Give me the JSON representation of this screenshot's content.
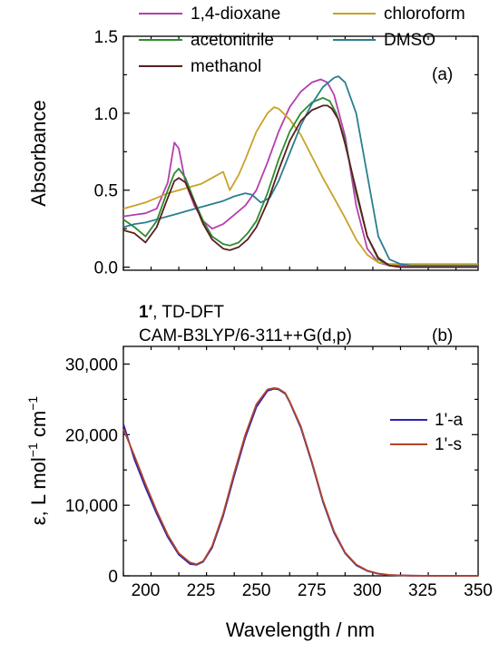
{
  "chart_data": [
    {
      "type": "line",
      "panel_label": "(a)",
      "ylabel": "Absorbance",
      "xlim": [
        190,
        350
      ],
      "ylim": [
        -0.02,
        1.5
      ],
      "yticks": [
        0.0,
        0.5,
        1.0,
        1.5
      ],
      "ytick_labels": [
        "0.0",
        "0.5",
        "1.0",
        "1.5"
      ],
      "xticks": [
        200,
        225,
        250,
        275,
        300,
        325,
        350
      ],
      "legend_position": "top",
      "series": [
        {
          "name": "1,4-dioxane",
          "color": "#b43fae",
          "x": [
            190,
            195,
            200,
            205,
            210,
            213,
            215,
            218,
            222,
            226,
            230,
            235,
            240,
            245,
            250,
            255,
            260,
            265,
            270,
            275,
            279,
            282,
            285,
            290,
            295,
            300,
            305,
            310,
            315,
            320,
            350
          ],
          "y": [
            0.33,
            0.34,
            0.35,
            0.38,
            0.55,
            0.81,
            0.77,
            0.55,
            0.4,
            0.3,
            0.25,
            0.28,
            0.34,
            0.4,
            0.5,
            0.68,
            0.88,
            1.04,
            1.14,
            1.2,
            1.22,
            1.2,
            1.12,
            0.85,
            0.4,
            0.12,
            0.03,
            0.01,
            0.01,
            0.01,
            0.01
          ]
        },
        {
          "name": "chloroform",
          "color": "#c9a227",
          "x": [
            190,
            195,
            200,
            205,
            210,
            215,
            220,
            225,
            230,
            235,
            238,
            242,
            245,
            250,
            255,
            258,
            260,
            265,
            270,
            275,
            280,
            285,
            290,
            295,
            300,
            305,
            310,
            315,
            320,
            350
          ],
          "y": [
            0.38,
            0.4,
            0.42,
            0.45,
            0.48,
            0.5,
            0.52,
            0.54,
            0.58,
            0.62,
            0.5,
            0.6,
            0.7,
            0.88,
            1.0,
            1.04,
            1.03,
            0.96,
            0.86,
            0.72,
            0.58,
            0.45,
            0.32,
            0.18,
            0.08,
            0.03,
            0.02,
            0.02,
            0.02,
            0.02
          ]
        },
        {
          "name": "acetonitrile",
          "color": "#2e8b2e",
          "x": [
            190,
            195,
            200,
            205,
            210,
            213,
            215,
            218,
            222,
            226,
            230,
            235,
            238,
            242,
            246,
            250,
            255,
            260,
            265,
            270,
            275,
            280,
            283,
            286,
            290,
            295,
            300,
            305,
            310,
            315,
            320,
            350
          ],
          "y": [
            0.31,
            0.26,
            0.2,
            0.3,
            0.5,
            0.61,
            0.64,
            0.58,
            0.43,
            0.3,
            0.2,
            0.15,
            0.14,
            0.16,
            0.22,
            0.3,
            0.48,
            0.7,
            0.88,
            1.0,
            1.07,
            1.1,
            1.08,
            1.0,
            0.82,
            0.48,
            0.2,
            0.05,
            0.01,
            0.0,
            0.0,
            0.0
          ]
        },
        {
          "name": "DMSO",
          "color": "#2a7f8f",
          "x": [
            190,
            195,
            200,
            205,
            210,
            215,
            220,
            225,
            230,
            235,
            240,
            245,
            248,
            252,
            256,
            260,
            265,
            270,
            275,
            280,
            285,
            287,
            290,
            295,
            300,
            305,
            310,
            315,
            320,
            350
          ],
          "y": [
            0.26,
            0.28,
            0.29,
            0.31,
            0.33,
            0.35,
            0.37,
            0.39,
            0.41,
            0.43,
            0.46,
            0.48,
            0.47,
            0.42,
            0.45,
            0.56,
            0.74,
            0.92,
            1.06,
            1.17,
            1.23,
            1.24,
            1.2,
            1.0,
            0.6,
            0.2,
            0.05,
            0.02,
            0.01,
            0.01
          ]
        },
        {
          "name": "methanol",
          "color": "#5a1e1e",
          "x": [
            190,
            195,
            200,
            205,
            210,
            213,
            215,
            218,
            222,
            226,
            230,
            235,
            238,
            242,
            246,
            250,
            255,
            260,
            265,
            270,
            275,
            280,
            282,
            284,
            287,
            290,
            295,
            300,
            305,
            310,
            315,
            320,
            350
          ],
          "y": [
            0.24,
            0.22,
            0.16,
            0.26,
            0.45,
            0.56,
            0.58,
            0.55,
            0.42,
            0.28,
            0.18,
            0.12,
            0.11,
            0.13,
            0.18,
            0.26,
            0.42,
            0.63,
            0.82,
            0.95,
            1.02,
            1.05,
            1.05,
            1.03,
            0.96,
            0.8,
            0.5,
            0.2,
            0.06,
            0.01,
            0.0,
            0.0,
            0.0
          ]
        }
      ]
    },
    {
      "type": "line",
      "panel_label": "(b)",
      "annotation_bold": "1′",
      "annotation_rest": ", TD-DFT",
      "annotation_line2": "CAM-B3LYP/6-311++G(d,p)",
      "xlabel": "Wavelength / nm",
      "ylabel": "ε, L mol",
      "ylabel_mid": " cm",
      "ylabel_sup": "−1",
      "xlim": [
        190,
        350
      ],
      "ylim": [
        0,
        32500
      ],
      "xticks": [
        200,
        225,
        250,
        275,
        300,
        325,
        350
      ],
      "xtick_labels": [
        "200",
        "225",
        "250",
        "275",
        "300",
        "325",
        "350"
      ],
      "yticks": [
        0,
        10000,
        20000,
        30000
      ],
      "ytick_labels": [
        "0",
        "10,000",
        "20,000",
        "30,000"
      ],
      "legend_position": "right",
      "series": [
        {
          "name": "1'-a",
          "color": "#2a22b5",
          "x": [
            190,
            195,
            200,
            205,
            210,
            215,
            220,
            223,
            226,
            230,
            235,
            240,
            245,
            250,
            255,
            258,
            260,
            263,
            265,
            270,
            275,
            280,
            285,
            290,
            295,
            300,
            305,
            310,
            315,
            320,
            325,
            330,
            350
          ],
          "y": [
            21500,
            16500,
            12500,
            8800,
            5500,
            3000,
            1700,
            1550,
            2000,
            4000,
            8500,
            14200,
            19600,
            23900,
            26200,
            26500,
            26400,
            25800,
            24600,
            21000,
            16000,
            10500,
            6100,
            3200,
            1500,
            700,
            300,
            120,
            60,
            20,
            10,
            5,
            0
          ]
        },
        {
          "name": "1'-s",
          "color": "#b4452a",
          "x": [
            190,
            195,
            200,
            205,
            210,
            215,
            220,
            223,
            226,
            230,
            235,
            240,
            245,
            250,
            255,
            258,
            260,
            263,
            265,
            270,
            275,
            280,
            285,
            290,
            295,
            300,
            305,
            310,
            315,
            320,
            325,
            330,
            350
          ],
          "y": [
            20800,
            17000,
            13000,
            9200,
            5800,
            3200,
            1900,
            1650,
            2100,
            4200,
            8800,
            14600,
            20000,
            24300,
            26400,
            26600,
            26500,
            25900,
            24700,
            21200,
            16200,
            10700,
            6300,
            3300,
            1600,
            750,
            320,
            130,
            60,
            20,
            10,
            5,
            0
          ]
        }
      ]
    }
  ]
}
